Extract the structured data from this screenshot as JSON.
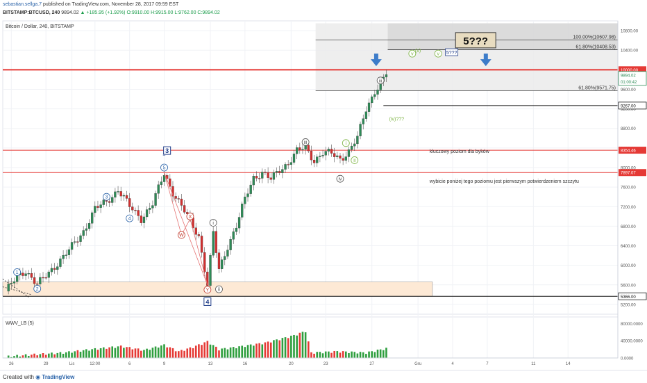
{
  "header": {
    "author": "sebastian.sellga.7",
    "published_text": "published on TradingView.com, November 28, 2017 09:59 EST",
    "symbol": "BITSTAMP:BTCUSD, 240",
    "last": "9894.02",
    "change": "+185.95 (+1.92%)",
    "ohlc": "O:9910.00 H:9915.00 L:9762.00 C:9894.02"
  },
  "footer": {
    "created_with": "Created with",
    "brand": "TradingView"
  },
  "chart_data": {
    "type": "candlestick",
    "title": "Bitcoin / Dollar, 240, BITSTAMP",
    "ylim": [
      5000,
      11000
    ],
    "y_ticks": [
      5200,
      5600,
      6000,
      6400,
      6800,
      7200,
      7600,
      8000,
      8400,
      8800,
      9200,
      9600,
      10000,
      10400,
      10800
    ],
    "y_tick_labels": [
      "5200.00",
      "5600.00",
      "6000.00",
      "6400.00",
      "6800.00",
      "7200.00",
      "7600.00",
      "8000.00",
      "8400.00",
      "8800.00",
      "9200.00",
      "9600.00",
      "10000.00",
      "10400.00",
      "10800.00"
    ],
    "x_tick_labels": [
      {
        "label": "26",
        "x": 2
      },
      {
        "label": "29",
        "x": 14
      },
      {
        "label": "Lis",
        "x": 23
      },
      {
        "label": "12:00",
        "x": 31
      },
      {
        "label": "6",
        "x": 43
      },
      {
        "label": "9",
        "x": 55
      },
      {
        "label": "13",
        "x": 71
      },
      {
        "label": "16",
        "x": 83
      },
      {
        "label": "20",
        "x": 99
      },
      {
        "label": "23",
        "x": 111
      },
      {
        "label": "27",
        "x": 127
      },
      {
        "label": "Gru",
        "x": 143
      },
      {
        "label": "4",
        "x": 155
      },
      {
        "label": "7",
        "x": 167
      },
      {
        "label": "11",
        "x": 183
      },
      {
        "label": "14",
        "x": 195
      }
    ],
    "anchors": [
      [
        0,
        5470
      ],
      [
        4,
        5750
      ],
      [
        7,
        5900
      ],
      [
        11,
        5600
      ],
      [
        14,
        5780
      ],
      [
        18,
        6050
      ],
      [
        22,
        6300
      ],
      [
        27,
        6700
      ],
      [
        31,
        7150
      ],
      [
        35,
        7300
      ],
      [
        39,
        7550
      ],
      [
        43,
        7200
      ],
      [
        47,
        6960
      ],
      [
        51,
        7250
      ],
      [
        55,
        7880
      ],
      [
        58,
        7500
      ],
      [
        61,
        7200
      ],
      [
        64,
        6900
      ],
      [
        67,
        6600
      ],
      [
        70,
        5600
      ],
      [
        72,
        6650
      ],
      [
        74,
        5900
      ],
      [
        77,
        6400
      ],
      [
        80,
        6800
      ],
      [
        83,
        7350
      ],
      [
        86,
        7800
      ],
      [
        89,
        7900
      ],
      [
        92,
        7750
      ],
      [
        95,
        7950
      ],
      [
        98,
        8100
      ],
      [
        101,
        8330
      ],
      [
        104,
        8400
      ],
      [
        107,
        8150
      ],
      [
        110,
        8300
      ],
      [
        113,
        8280
      ],
      [
        116,
        8180
      ],
      [
        119,
        8330
      ],
      [
        122,
        8600
      ],
      [
        125,
        9200
      ],
      [
        128,
        9570
      ],
      [
        130,
        9700
      ],
      [
        132,
        9900
      ]
    ],
    "volume_anchors": [
      [
        0,
        3000
      ],
      [
        10,
        8000
      ],
      [
        20,
        12000
      ],
      [
        30,
        20000
      ],
      [
        40,
        27000
      ],
      [
        48,
        18000
      ],
      [
        55,
        30000
      ],
      [
        60,
        15000
      ],
      [
        65,
        25000
      ],
      [
        70,
        38000
      ],
      [
        74,
        20000
      ],
      [
        80,
        25000
      ],
      [
        90,
        35000
      ],
      [
        100,
        52000
      ],
      [
        104,
        62000
      ],
      [
        106,
        12000
      ],
      [
        115,
        15000
      ],
      [
        125,
        12000
      ],
      [
        132,
        22000
      ]
    ],
    "volume_ticks": [
      0,
      40000,
      80000
    ],
    "volume_tick_labels": [
      "0.0000",
      "40000.0000",
      "80000.0000"
    ],
    "indicator_label": "WWV_LB (5)",
    "levels": [
      {
        "value": 10000,
        "label": "10000.00",
        "color": "#e53935",
        "width": 2
      },
      {
        "value": 8354.46,
        "label": "8354.46",
        "color": "#e53935",
        "width": 1
      },
      {
        "value": 7897.07,
        "label": "7897.07",
        "color": "#e53935",
        "width": 1
      },
      {
        "value": 9267,
        "label": "9267.00",
        "color": "#111111",
        "width": 1
      },
      {
        "value": 5366,
        "label": "5366.00",
        "color": "#111111",
        "width": 1
      }
    ],
    "price_label": {
      "value": 9894.02,
      "label": "9894.02",
      "countdown": "01:00:42"
    },
    "fib_labels": [
      {
        "text": "100.00%(10607.98)",
        "value": 10607.98
      },
      {
        "text": "61.80%(10408.53)",
        "value": 10408.53
      },
      {
        "text": "61.80%(9571.75)",
        "value": 9571.75
      }
    ],
    "annotations": {
      "target_box": "5???",
      "small_box": "5???",
      "note_bulls": "kluczowy poziom dla byków",
      "note_break": "wybicie poniżej tego poziomu jest pierwszym potwierdzeniem szczytu",
      "wave_iv": "(iv)???",
      "wave_v_paren": "(v)"
    },
    "waves_blue": [
      {
        "text": "1",
        "x": 4,
        "v": 5860
      },
      {
        "text": "2",
        "x": 11,
        "v": 5520
      },
      {
        "text": "3",
        "x": 35,
        "v": 7400
      },
      {
        "text": "4",
        "x": 43,
        "v": 6960
      },
      {
        "text": "5",
        "x": 55,
        "v": 8000
      }
    ],
    "waves_red": [
      {
        "text": "X",
        "x": 64,
        "v": 7000
      },
      {
        "text": "W",
        "x": 61,
        "v": 6620
      },
      {
        "text": "Y",
        "x": 70,
        "v": 5500
      }
    ],
    "waves_gray": [
      {
        "text": "i",
        "x": 72,
        "v": 6870
      },
      {
        "text": "ii",
        "x": 74,
        "v": 5510
      },
      {
        "text": "iii",
        "x": 104,
        "v": 8520
      },
      {
        "text": "iv",
        "x": 116,
        "v": 7770
      },
      {
        "text": "iii",
        "x": 130,
        "v": 9780
      }
    ],
    "waves_olive": [
      {
        "text": "i",
        "x": 118,
        "v": 8500
      },
      {
        "text": "ii",
        "x": 121,
        "v": 8150
      },
      {
        "text": "v",
        "x": 141,
        "v": 10330
      },
      {
        "text": "v",
        "x": 150,
        "v": 10330
      }
    ],
    "degree_boxes": [
      {
        "text": "3",
        "x": 56,
        "v": 8340
      },
      {
        "text": "4",
        "x": 70,
        "v": 5250
      }
    ]
  }
}
